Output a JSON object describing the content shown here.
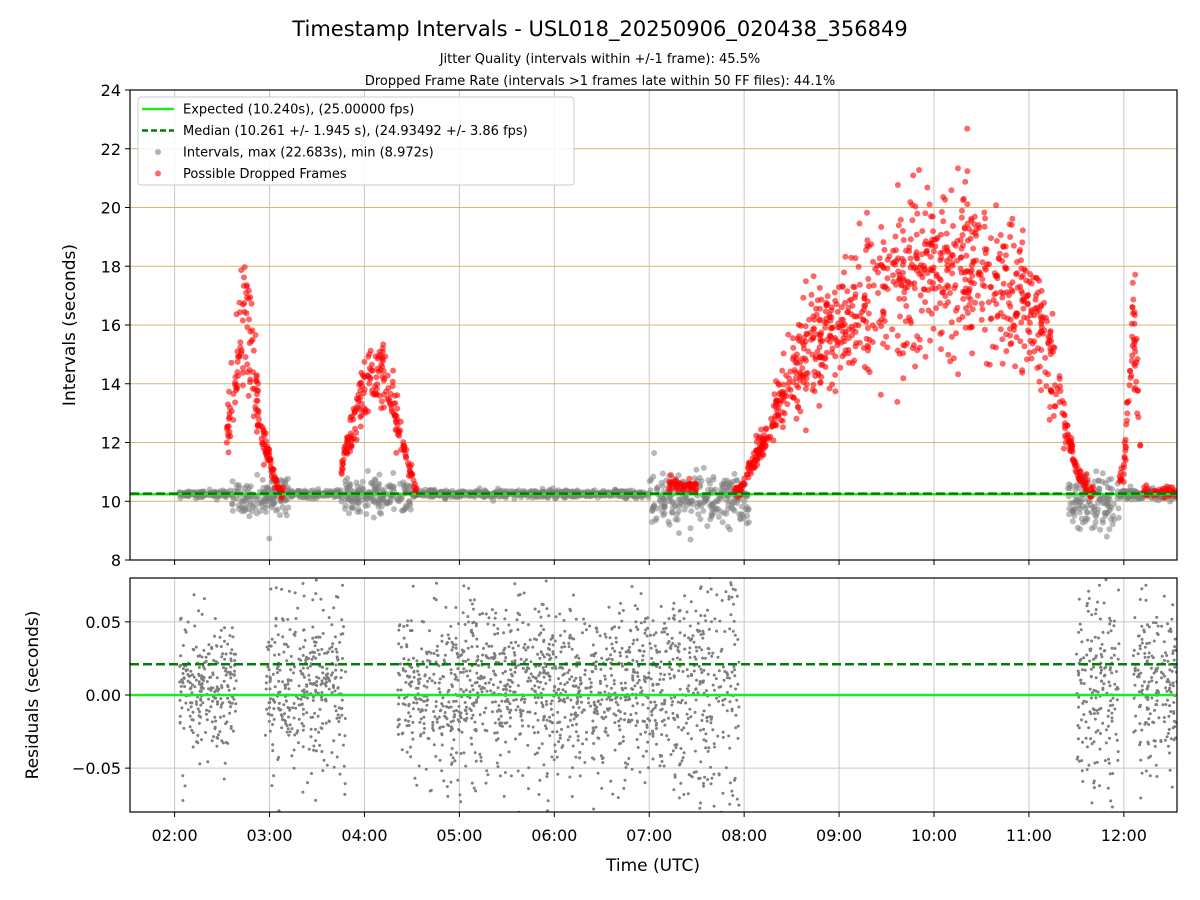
{
  "figure": {
    "title": "Timestamp Intervals - USL018_20250906_020438_356849",
    "subtitle1": "Jitter Quality (intervals within +/-1 frame): 45.5%",
    "subtitle2": "Dropped Frame Rate (intervals >1 frames late within 50 FF files): 44.1%",
    "xlabel": "Time (UTC)"
  },
  "colors": {
    "expected": "#22e822",
    "median": "#008000",
    "intervals": "#7f7f7f",
    "dropped": "#ff0000",
    "hgrid": "#d9b675",
    "vgrid": "#c8c8c8"
  },
  "chart_data": [
    {
      "type": "scatter",
      "ylabel": "Intervals (seconds)",
      "xlim_hours": [
        1.53,
        12.56
      ],
      "ylim": [
        8,
        24
      ],
      "yticks": [
        "8",
        "10",
        "12",
        "14",
        "16",
        "18",
        "20",
        "22",
        "24"
      ],
      "grid": true,
      "legend_position": "top-left",
      "legend": [
        "Expected (10.240s), (25.00000 fps)",
        "Median (10.261 +/- 1.945 s), (24.93492 +/- 3.86 fps)",
        "Intervals, max (22.683s), min (8.972s)",
        "Possible Dropped Frames"
      ],
      "expected_line": 10.24,
      "median_line": 10.261,
      "interval_max": 22.683,
      "interval_min": 8.972,
      "intervals_segments": [
        {
          "x0": 2.05,
          "x1": 2.6,
          "center": 10.25,
          "spread": 0.05
        },
        {
          "x0": 2.6,
          "x1": 3.2,
          "center": 10.2,
          "spread": 0.35
        },
        {
          "x0": 3.2,
          "x1": 3.75,
          "center": 10.25,
          "spread": 0.06
        },
        {
          "x0": 3.75,
          "x1": 4.5,
          "center": 10.2,
          "spread": 0.3
        },
        {
          "x0": 4.5,
          "x1": 7.0,
          "center": 10.25,
          "spread": 0.06
        },
        {
          "x0": 7.0,
          "x1": 8.05,
          "center": 10.1,
          "spread": 0.45
        },
        {
          "x0": 11.4,
          "x1": 11.95,
          "center": 10.0,
          "spread": 0.45
        },
        {
          "x0": 11.95,
          "x1": 12.56,
          "center": 10.25,
          "spread": 0.08
        }
      ],
      "dropped_envelope_hours": [
        2.35,
        2.55,
        2.75,
        2.9,
        3.1,
        3.5,
        3.75,
        4.0,
        4.2,
        4.4,
        4.55,
        7.2,
        7.5,
        7.95,
        8.2,
        8.5,
        8.8,
        9.2,
        9.6,
        10.0,
        10.3,
        10.6,
        10.9,
        11.1,
        11.3,
        11.5,
        11.65,
        11.9,
        12.0,
        12.1,
        12.2
      ],
      "dropped_envelope_values": [
        10.2,
        12.0,
        16.5,
        12.5,
        10.3,
        10.3,
        11.0,
        14.0,
        14.5,
        12.0,
        10.3,
        10.6,
        10.5,
        10.4,
        12.0,
        14.5,
        15.5,
        16.5,
        17.5,
        18.0,
        18.0,
        17.5,
        17.0,
        16.0,
        14.0,
        11.0,
        10.3,
        10.3,
        11.0,
        16.0,
        10.3
      ]
    },
    {
      "type": "scatter",
      "ylabel": "Residuals (seconds)",
      "ylim": [
        -0.08,
        0.08
      ],
      "yticks": [
        "−0.05",
        "0.00",
        "0.05"
      ],
      "xticks": [
        "02:00",
        "03:00",
        "04:00",
        "05:00",
        "06:00",
        "07:00",
        "08:00",
        "09:00",
        "10:00",
        "11:00",
        "12:00"
      ],
      "zero_line": 0.0,
      "median_line": 0.021,
      "residual_clusters": [
        {
          "x0": 2.05,
          "x1": 2.65,
          "spread": 0.025
        },
        {
          "x0": 2.95,
          "x1": 3.8,
          "spread": 0.03
        },
        {
          "x0": 4.35,
          "x1": 7.25,
          "spread": 0.028
        },
        {
          "x0": 7.25,
          "x1": 7.95,
          "spread": 0.05
        },
        {
          "x0": 11.5,
          "x1": 11.95,
          "spread": 0.04
        },
        {
          "x0": 12.1,
          "x1": 12.56,
          "spread": 0.03
        }
      ]
    }
  ]
}
